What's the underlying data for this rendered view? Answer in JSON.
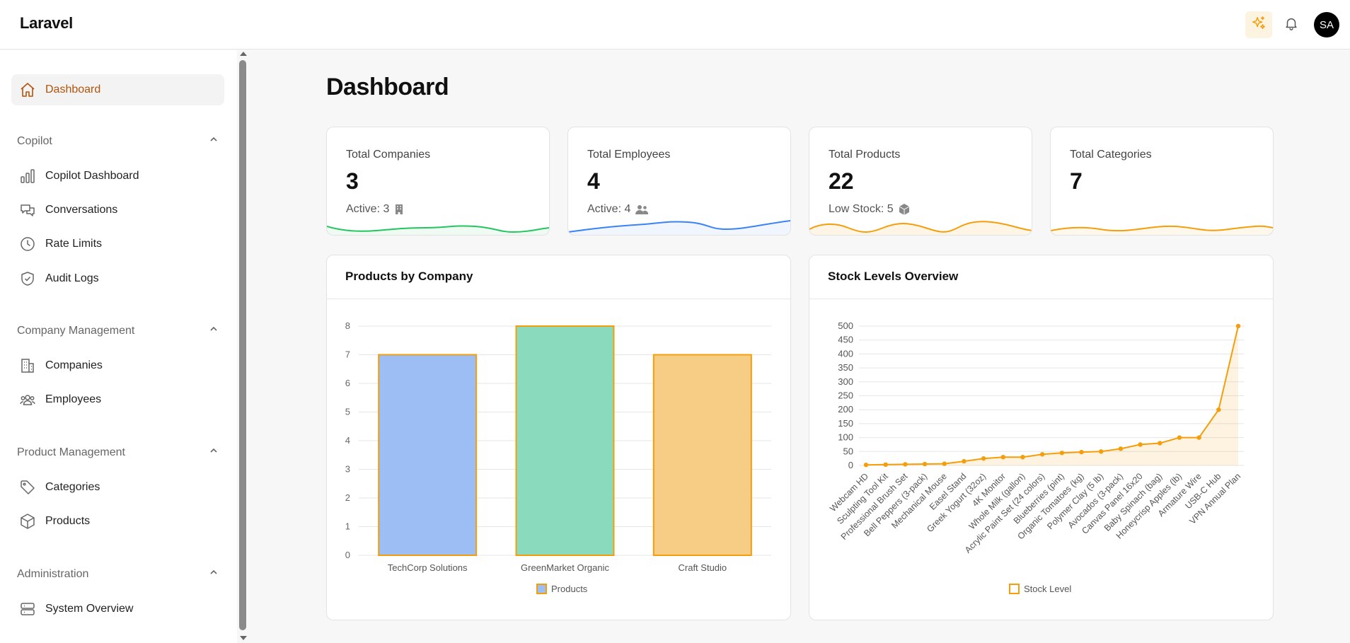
{
  "header": {
    "brand": "Laravel",
    "avatar_initials": "SA",
    "ai_icon": "sparkles-icon",
    "bell_icon": "bell-icon",
    "accent_color": "#f59e0b"
  },
  "sidebar": {
    "dashboard": {
      "label": "Dashboard",
      "icon": "home-icon"
    },
    "sections": [
      {
        "title": "Copilot",
        "items": [
          {
            "label": "Copilot Dashboard",
            "icon": "bar-chart-icon"
          },
          {
            "label": "Conversations",
            "icon": "chat-icon"
          },
          {
            "label": "Rate Limits",
            "icon": "clock-icon"
          },
          {
            "label": "Audit Logs",
            "icon": "shield-check-icon"
          }
        ]
      },
      {
        "title": "Company Management",
        "items": [
          {
            "label": "Companies",
            "icon": "building-icon"
          },
          {
            "label": "Employees",
            "icon": "users-icon"
          }
        ]
      },
      {
        "title": "Product Management",
        "items": [
          {
            "label": "Categories",
            "icon": "tag-icon"
          },
          {
            "label": "Products",
            "icon": "cube-icon"
          }
        ]
      },
      {
        "title": "Administration",
        "items": [
          {
            "label": "System Overview",
            "icon": "server-icon"
          }
        ]
      }
    ]
  },
  "main": {
    "title": "Dashboard",
    "stats": [
      {
        "title": "Total Companies",
        "value": "3",
        "sub": "Active: 3",
        "icon": "building-solid-icon",
        "color": "#22c55e"
      },
      {
        "title": "Total Employees",
        "value": "4",
        "sub": "Active: 4",
        "icon": "users-solid-icon",
        "color": "#3b82f6"
      },
      {
        "title": "Total Products",
        "value": "22",
        "sub": "Low Stock: 5",
        "icon": "cube-solid-icon",
        "color": "#f59e0b"
      },
      {
        "title": "Total Categories",
        "value": "7",
        "sub": "",
        "icon": "",
        "color": "#f59e0b"
      }
    ]
  },
  "chart_data": [
    {
      "type": "bar",
      "title": "Products by Company",
      "categories": [
        "TechCorp Solutions",
        "GreenMarket Organic",
        "Craft Studio"
      ],
      "series": [
        {
          "name": "Products",
          "values": [
            7,
            8,
            7
          ]
        }
      ],
      "bar_colors": [
        "#9dbdf5",
        "#8adbbd",
        "#f7cd85"
      ],
      "border_color": "#f59e0b",
      "ylim": [
        0,
        8
      ],
      "yticks": [
        "0",
        "1",
        "2",
        "3",
        "4",
        "5",
        "6",
        "7",
        "8"
      ],
      "legend": "bottom"
    },
    {
      "type": "line",
      "title": "Stock Levels Overview",
      "categories": [
        "Webcam HD",
        "Sculpting Tool Kit",
        "Professional Brush Set",
        "Bell Peppers (3-pack)",
        "Mechanical Mouse",
        "Easel Stand",
        "Greek Yogurt (32oz)",
        "4K Monitor",
        "Whole Milk (gallon)",
        "Acrylic Paint Set (24 colors)",
        "Blueberries (pint)",
        "Organic Tomatoes (kg)",
        "Polymer Clay (5 lb)",
        "Avocados (3-pack)",
        "Canvas Panel 16x20",
        "Baby Spinach (bag)",
        "Honeycrisp Apples (lb)",
        "Armature Wire",
        "USB-C Hub",
        "VPN Annual Plan"
      ],
      "series": [
        {
          "name": "Stock Level",
          "values": [
            2,
            3,
            4,
            5,
            6,
            15,
            25,
            30,
            30,
            40,
            45,
            48,
            50,
            60,
            75,
            80,
            100,
            100,
            200,
            500
          ]
        }
      ],
      "color": "#f59e0b",
      "ylim": [
        0,
        500
      ],
      "yticks": [
        "0",
        "50",
        "100",
        "150",
        "200",
        "250",
        "300",
        "350",
        "400",
        "450",
        "500"
      ],
      "legend": "bottom"
    }
  ]
}
